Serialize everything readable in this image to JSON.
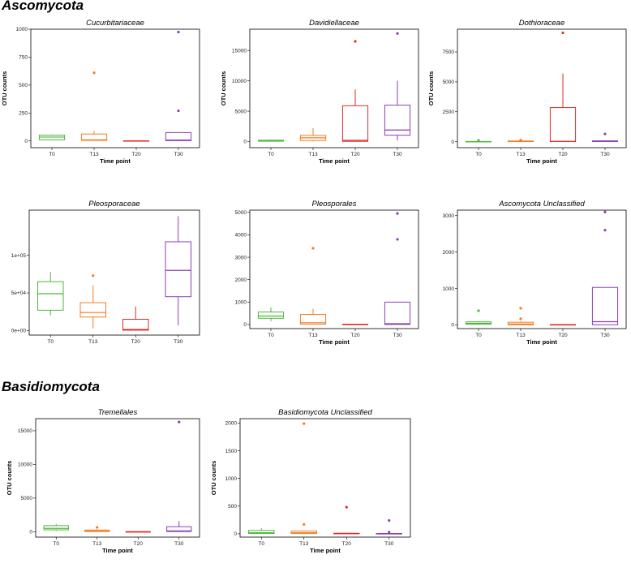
{
  "sections": {
    "ascomycota": "Ascomycota",
    "basidiomycota": "Basidiomycota"
  },
  "colors": {
    "T0": "#4cb83a",
    "T13": "#f47c20",
    "T20": "#e02b26",
    "T30": "#8a3fb5"
  },
  "chart_data": [
    {
      "type": "box",
      "title": "Cucurbitariaceae",
      "xlabel": "Time point",
      "ylabel": "OTU counts",
      "categories": [
        "T0",
        "T13",
        "T20",
        "T30"
      ],
      "ylim": [
        -60,
        1000
      ],
      "yticks": [
        0,
        250,
        500,
        750,
        1000
      ],
      "ytick_labels": [
        "0",
        "250",
        "500",
        "750",
        "1000"
      ],
      "boxes": [
        {
          "min": 8,
          "q1": 10,
          "median": 35,
          "q3": 52,
          "max": 58,
          "outliers": []
        },
        {
          "min": 2,
          "q1": 5,
          "median": 10,
          "q3": 62,
          "max": 88,
          "outliers": [
            610
          ]
        },
        {
          "min": 0,
          "q1": 0,
          "median": 0,
          "q3": 2,
          "max": 3,
          "outliers": []
        },
        {
          "min": 1,
          "q1": 3,
          "median": 8,
          "q3": 75,
          "max": 80,
          "outliers": [
            270,
            975
          ]
        }
      ]
    },
    {
      "type": "box",
      "title": "Davidiellaceae",
      "xlabel": "Time point",
      "ylabel": "OTU counts",
      "categories": [
        "T0",
        "T13",
        "T20",
        "T30"
      ],
      "ylim": [
        -1000,
        18500
      ],
      "yticks": [
        0,
        5000,
        10000,
        15000
      ],
      "ytick_labels": [
        "0",
        "5000",
        "10000",
        "15000"
      ],
      "boxes": [
        {
          "min": 30,
          "q1": 60,
          "median": 120,
          "q3": 230,
          "max": 320,
          "outliers": []
        },
        {
          "min": 20,
          "q1": 180,
          "median": 620,
          "q3": 1020,
          "max": 2200,
          "outliers": []
        },
        {
          "min": 0,
          "q1": 40,
          "median": 200,
          "q3": 5900,
          "max": 8600,
          "outliers": [
            16500
          ]
        },
        {
          "min": 200,
          "q1": 1050,
          "median": 1900,
          "q3": 6000,
          "max": 10000,
          "outliers": [
            17800
          ]
        }
      ]
    },
    {
      "type": "box",
      "title": "Dothioraceae",
      "xlabel": "Time point",
      "ylabel": "OTU counts",
      "categories": [
        "T0",
        "T13",
        "T20",
        "T30"
      ],
      "ylim": [
        -500,
        9400
      ],
      "yticks": [
        0,
        2500,
        5000,
        7500
      ],
      "ytick_labels": [
        "0",
        "2500",
        "5000",
        "7500"
      ],
      "boxes": [
        {
          "min": 0,
          "q1": 0,
          "median": 5,
          "q3": 20,
          "max": 40,
          "outliers": [
            100
          ]
        },
        {
          "min": 0,
          "q1": 5,
          "median": 20,
          "q3": 60,
          "max": 90,
          "outliers": [
            140
          ]
        },
        {
          "min": 0,
          "q1": 10,
          "median": 30,
          "q3": 2850,
          "max": 5700,
          "outliers": [
            9100
          ]
        },
        {
          "min": 0,
          "q1": 10,
          "median": 25,
          "q3": 70,
          "max": 110,
          "outliers": [
            650
          ]
        }
      ]
    },
    {
      "type": "box",
      "title": "Pleosporaceae",
      "xlabel": "",
      "ylabel": "",
      "categories": [
        "T0",
        "T13",
        "T20",
        "T30"
      ],
      "ylim": [
        -6000,
        160000
      ],
      "yticks": [
        0,
        50000,
        100000
      ],
      "ytick_labels": [
        "0e+00",
        "5e+04",
        "1e+05"
      ],
      "boxes": [
        {
          "min": 20000,
          "q1": 27000,
          "median": 49000,
          "q3": 65000,
          "max": 78000,
          "outliers": []
        },
        {
          "min": 3000,
          "q1": 18000,
          "median": 24000,
          "q3": 37000,
          "max": 60000,
          "outliers": [
            73000
          ]
        },
        {
          "min": 0,
          "q1": 500,
          "median": 1500,
          "q3": 15000,
          "max": 32000,
          "outliers": []
        },
        {
          "min": 7000,
          "q1": 45000,
          "median": 80000,
          "q3": 118000,
          "max": 152000,
          "outliers": []
        }
      ]
    },
    {
      "type": "box",
      "title": "Pleosporales",
      "xlabel": "Time point",
      "ylabel": "",
      "categories": [
        "T0",
        "T13",
        "T20",
        "T30"
      ],
      "ylim": [
        -180,
        5100
      ],
      "yticks": [
        0,
        1000,
        2000,
        3000,
        4000,
        5000
      ],
      "ytick_labels": [
        "0",
        "1000",
        "2000",
        "3000",
        "4000",
        "5000"
      ],
      "boxes": [
        {
          "min": 150,
          "q1": 280,
          "median": 380,
          "q3": 560,
          "max": 760,
          "outliers": []
        },
        {
          "min": 0,
          "q1": 20,
          "median": 80,
          "q3": 450,
          "max": 700,
          "outliers": [
            3400
          ]
        },
        {
          "min": 0,
          "q1": 0,
          "median": 5,
          "q3": 15,
          "max": 25,
          "outliers": []
        },
        {
          "min": 0,
          "q1": 5,
          "median": 40,
          "q3": 1000,
          "max": 1000,
          "outliers": [
            3800,
            4950
          ]
        }
      ]
    },
    {
      "type": "box",
      "title": "Ascomycota Unclassified",
      "xlabel": "Time point",
      "ylabel": "",
      "categories": [
        "T0",
        "T13",
        "T20",
        "T30"
      ],
      "ylim": [
        -100,
        3150
      ],
      "yticks": [
        0,
        1000,
        2000,
        3000
      ],
      "ytick_labels": [
        "0",
        "1000",
        "2000",
        "3000"
      ],
      "boxes": [
        {
          "min": 5,
          "q1": 20,
          "median": 45,
          "q3": 85,
          "max": 105,
          "outliers": [
            390
          ]
        },
        {
          "min": 0,
          "q1": 5,
          "median": 25,
          "q3": 75,
          "max": 110,
          "outliers": [
            170,
            460
          ]
        },
        {
          "min": 0,
          "q1": 0,
          "median": 5,
          "q3": 10,
          "max": 20,
          "outliers": []
        },
        {
          "min": 0,
          "q1": 5,
          "median": 90,
          "q3": 1030,
          "max": 1030,
          "outliers": [
            2600,
            3100
          ]
        }
      ]
    },
    {
      "type": "box",
      "title": "Tremellales",
      "xlabel": "Time point",
      "ylabel": "OTU counts",
      "categories": [
        "T0",
        "T13",
        "T20",
        "T30"
      ],
      "ylim": [
        -800,
        16800
      ],
      "yticks": [
        0,
        5000,
        10000,
        15000
      ],
      "ytick_labels": [
        "0",
        "5000",
        "10000",
        "15000"
      ],
      "boxes": [
        {
          "min": 100,
          "q1": 280,
          "median": 500,
          "q3": 900,
          "max": 1150,
          "outliers": []
        },
        {
          "min": 0,
          "q1": 30,
          "median": 100,
          "q3": 250,
          "max": 350,
          "outliers": [
            650
          ]
        },
        {
          "min": 0,
          "q1": 0,
          "median": 0,
          "q3": 5,
          "max": 10,
          "outliers": []
        },
        {
          "min": 0,
          "q1": 30,
          "median": 120,
          "q3": 750,
          "max": 1600,
          "outliers": [
            16300
          ]
        }
      ]
    },
    {
      "type": "box",
      "title": "Basidiomycota Unclassified",
      "xlabel": "Time point",
      "ylabel": "OTU counts",
      "categories": [
        "T0",
        "T13",
        "T20",
        "T30"
      ],
      "ylim": [
        -60,
        2080
      ],
      "yticks": [
        0,
        500,
        1000,
        1500,
        2000
      ],
      "ytick_labels": [
        "0",
        "500",
        "1000",
        "1500",
        "2000"
      ],
      "boxes": [
        {
          "min": 0,
          "q1": 5,
          "median": 20,
          "q3": 60,
          "max": 100,
          "outliers": []
        },
        {
          "min": 0,
          "q1": 5,
          "median": 20,
          "q3": 50,
          "max": 60,
          "outliers": [
            170,
            1990
          ]
        },
        {
          "min": 0,
          "q1": 0,
          "median": 5,
          "q3": 10,
          "max": 15,
          "outliers": [
            480
          ]
        },
        {
          "min": 0,
          "q1": 0,
          "median": 5,
          "q3": 5,
          "max": 10,
          "outliers": [
            30,
            240
          ]
        }
      ]
    }
  ]
}
